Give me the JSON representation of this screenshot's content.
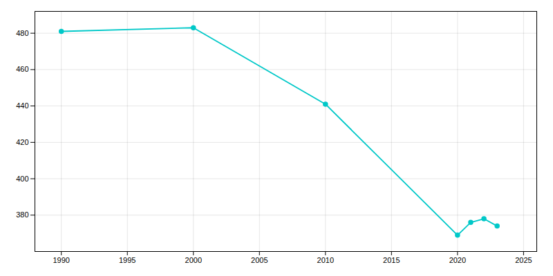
{
  "chart_data": {
    "type": "line",
    "x": [
      1990,
      2000,
      2010,
      2020,
      2021,
      2022,
      2023
    ],
    "values": [
      481,
      483,
      441,
      369,
      376,
      378,
      374
    ],
    "color": "#00C8C8",
    "marker": "circle",
    "xlim": [
      1988,
      2026
    ],
    "ylim": [
      360,
      492
    ],
    "xticks": [
      1990,
      1995,
      2000,
      2005,
      2010,
      2015,
      2020,
      2025
    ],
    "yticks": [
      380,
      400,
      420,
      440,
      460,
      480
    ],
    "grid": true
  }
}
